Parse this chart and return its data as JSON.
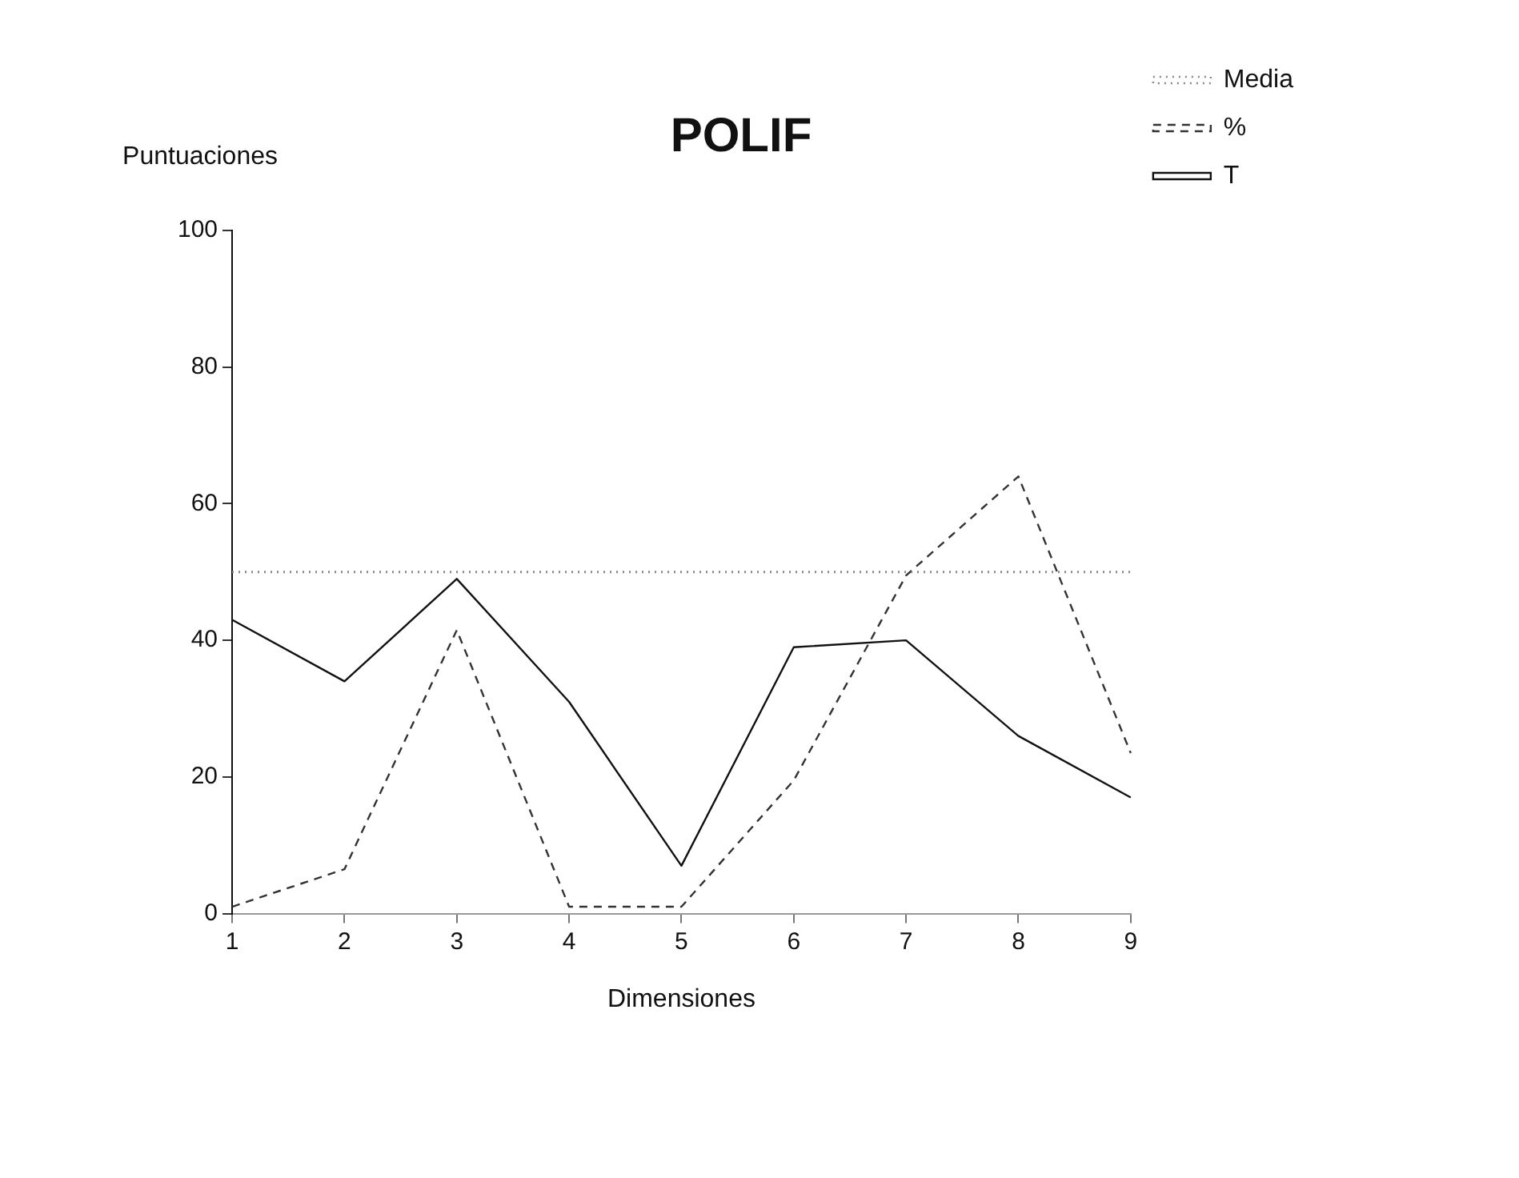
{
  "chart_data": {
    "type": "line",
    "title": "POLIF",
    "xlabel": "Dimensiones",
    "ylabel": "Puntuaciones",
    "categories": [
      "1",
      "2",
      "3",
      "4",
      "5",
      "6",
      "7",
      "8",
      "9"
    ],
    "series": [
      {
        "name": "Media",
        "color": "#888888",
        "line_style": "dotted",
        "values": [
          50,
          50,
          50,
          50,
          50,
          50,
          50,
          50,
          50
        ]
      },
      {
        "name": "%",
        "color": "#333333",
        "line_style": "dashed",
        "values": [
          1,
          6.5,
          41.5,
          1,
          1,
          19.5,
          49.5,
          64,
          23.5
        ]
      },
      {
        "name": "T",
        "color": "#111111",
        "line_style": "solid",
        "values": [
          43,
          34,
          49,
          31,
          7,
          39,
          40,
          26,
          17
        ]
      }
    ],
    "ylim": [
      0,
      100
    ],
    "yticks": [
      0,
      20,
      40,
      60,
      80,
      100
    ],
    "grid": false,
    "legend": "right",
    "marker": "none"
  }
}
